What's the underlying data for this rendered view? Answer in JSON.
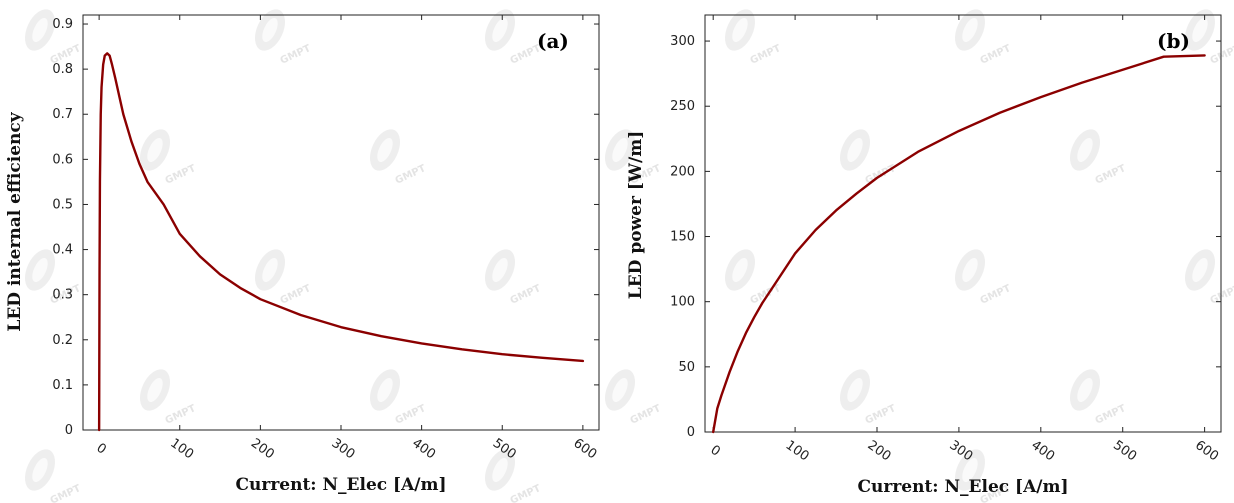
{
  "watermark": "GMPT",
  "colors": {
    "curve": "#8b0000",
    "axis": "#222222"
  },
  "chart_data": [
    {
      "type": "line",
      "panel_label": "(a)",
      "xlabel": "Current: N_Elec [A/m]",
      "ylabel": "LED internal efficiency",
      "xlim": [
        -20,
        620
      ],
      "ylim": [
        0,
        0.92
      ],
      "xticks": [
        0,
        100,
        200,
        300,
        400,
        500,
        600
      ],
      "yticks": [
        0,
        0.1,
        0.2,
        0.3,
        0.4,
        0.5,
        0.6,
        0.7,
        0.8,
        0.9
      ],
      "grid": false,
      "series": [
        {
          "x": [
            0,
            0.5,
            1,
            2,
            3,
            5,
            7,
            10,
            13,
            16,
            20,
            25,
            30,
            40,
            50,
            60,
            80,
            100,
            125,
            150,
            175,
            200,
            250,
            300,
            350,
            400,
            450,
            500,
            550,
            600
          ],
          "y": [
            0,
            0.35,
            0.55,
            0.7,
            0.76,
            0.81,
            0.83,
            0.835,
            0.83,
            0.81,
            0.78,
            0.74,
            0.7,
            0.64,
            0.59,
            0.55,
            0.5,
            0.435,
            0.385,
            0.345,
            0.315,
            0.29,
            0.255,
            0.228,
            0.208,
            0.192,
            0.179,
            0.168,
            0.16,
            0.153
          ]
        }
      ]
    },
    {
      "type": "line",
      "panel_label": "(b)",
      "xlabel": "Current: N_Elec [A/m]",
      "ylabel": "LED power [W/m]",
      "xlim": [
        -10,
        620
      ],
      "ylim": [
        0,
        320
      ],
      "xticks": [
        0,
        100,
        200,
        300,
        400,
        500,
        600
      ],
      "yticks": [
        0,
        50,
        100,
        150,
        200,
        250,
        300
      ],
      "grid": false,
      "series": [
        {
          "x": [
            0,
            5,
            10,
            20,
            30,
            40,
            50,
            60,
            80,
            100,
            125,
            150,
            175,
            200,
            250,
            300,
            350,
            400,
            450,
            500,
            550,
            600
          ],
          "y": [
            0,
            18,
            28,
            46,
            62,
            76,
            88,
            99,
            118,
            137,
            155,
            170,
            183,
            195,
            215,
            231,
            245,
            257,
            268,
            278,
            288,
            289
          ]
        }
      ]
    }
  ]
}
